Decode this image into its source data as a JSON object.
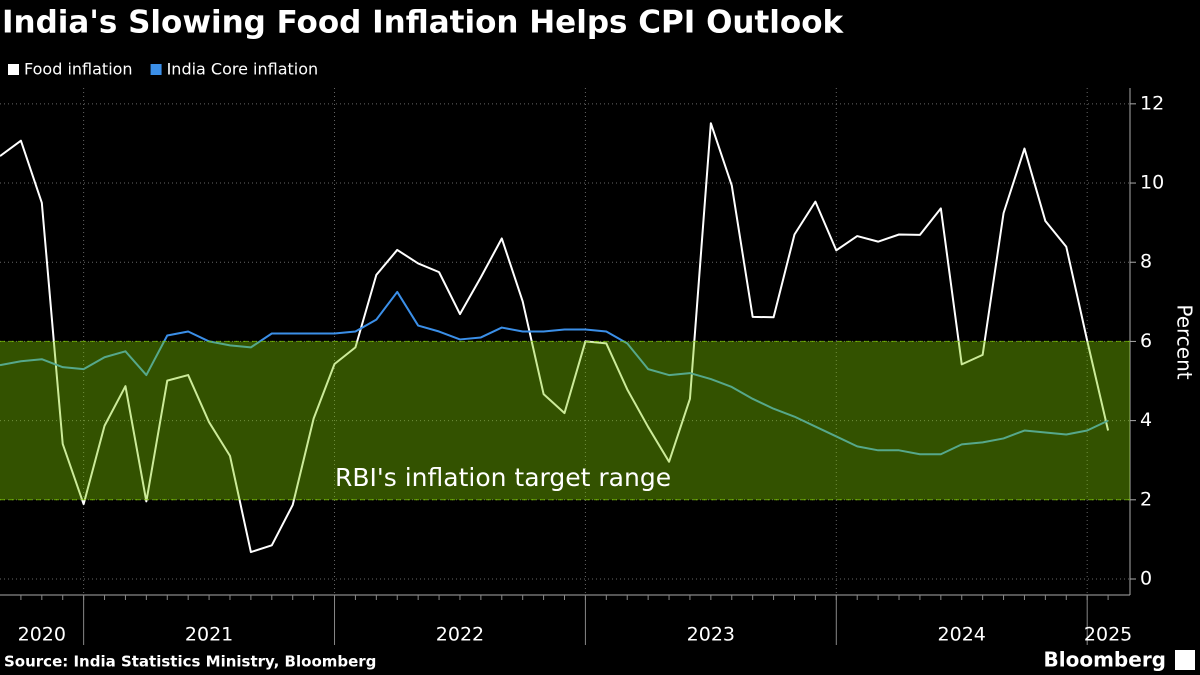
{
  "chart_data": {
    "type": "line",
    "title": "India's Slowing Food Inflation Helps CPI Outlook",
    "y_label": "Percent",
    "source": "Source: India Statistics Ministry, Bloomberg",
    "brand": "Bloomberg",
    "x": [
      "2020-09",
      "2020-10",
      "2020-11",
      "2020-12",
      "2021-01",
      "2021-02",
      "2021-03",
      "2021-04",
      "2021-05",
      "2021-06",
      "2021-07",
      "2021-08",
      "2021-09",
      "2021-10",
      "2021-11",
      "2021-12",
      "2022-01",
      "2022-02",
      "2022-03",
      "2022-04",
      "2022-05",
      "2022-06",
      "2022-07",
      "2022-08",
      "2022-09",
      "2022-10",
      "2022-11",
      "2022-12",
      "2023-01",
      "2023-02",
      "2023-03",
      "2023-04",
      "2023-05",
      "2023-06",
      "2023-07",
      "2023-08",
      "2023-09",
      "2023-10",
      "2023-11",
      "2023-12",
      "2024-01",
      "2024-02",
      "2024-03",
      "2024-04",
      "2024-05",
      "2024-06",
      "2024-07",
      "2024-08",
      "2024-09",
      "2024-10",
      "2024-11",
      "2024-12",
      "2025-01",
      "2025-02"
    ],
    "series": [
      {
        "name": "Food inflation",
        "color": "#ffffff",
        "values": [
          10.68,
          11.07,
          9.5,
          3.41,
          1.89,
          3.87,
          4.87,
          1.96,
          5.01,
          5.15,
          3.96,
          3.11,
          0.68,
          0.85,
          1.87,
          4.05,
          5.43,
          5.85,
          7.68,
          8.31,
          7.97,
          7.75,
          6.69,
          7.62,
          8.6,
          7.01,
          4.67,
          4.19,
          6.0,
          5.95,
          4.79,
          3.84,
          2.96,
          4.55,
          11.51,
          9.94,
          6.62,
          6.61,
          8.7,
          9.53,
          8.3,
          8.66,
          8.52,
          8.7,
          8.69,
          9.36,
          5.42,
          5.66,
          9.24,
          10.87,
          9.04,
          8.39,
          6.02,
          3.75
        ]
      },
      {
        "name": "India Core inflation",
        "color": "#3b8fe8",
        "values": [
          5.4,
          5.5,
          5.55,
          5.35,
          5.3,
          5.6,
          5.75,
          5.15,
          6.15,
          6.25,
          6.0,
          5.9,
          5.85,
          6.2,
          6.2,
          6.2,
          6.2,
          6.25,
          6.55,
          7.25,
          6.4,
          6.25,
          6.05,
          6.1,
          6.35,
          6.25,
          6.25,
          6.3,
          6.3,
          6.25,
          5.95,
          5.3,
          5.15,
          5.2,
          5.05,
          4.85,
          4.55,
          4.3,
          4.1,
          3.85,
          3.6,
          3.35,
          3.25,
          3.25,
          3.15,
          3.15,
          3.4,
          3.45,
          3.55,
          3.75,
          3.7,
          3.65,
          3.75,
          4.0
        ]
      }
    ],
    "band": {
      "range": [
        2,
        6
      ],
      "label": "RBI's inflation target range",
      "color": "#80cc00"
    },
    "xlim": [
      "2020-09",
      "2025-03"
    ],
    "xticks": [
      "2021-01",
      "2022-01",
      "2023-01",
      "2024-01",
      "2025-01"
    ],
    "xtick_labels": [
      "2020",
      "2021",
      "2022",
      "2023",
      "2024",
      "2025"
    ],
    "ylim": [
      0,
      12.4
    ],
    "yticks": [
      0,
      2,
      4,
      6,
      8,
      10,
      12
    ],
    "grid": true
  }
}
